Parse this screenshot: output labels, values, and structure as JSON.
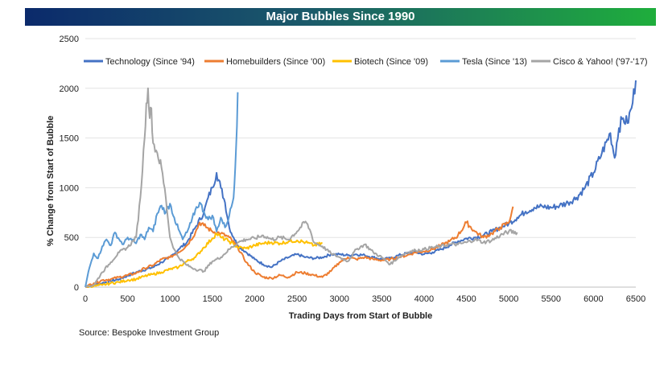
{
  "header": {
    "title": "Major Bubbles Since 1990"
  },
  "footer": {
    "source": "Source: Bespoke Investment Group"
  },
  "chart_data": {
    "type": "line",
    "title": "Major Bubbles Since 1990",
    "xlabel": "Trading Days from Start of Bubble",
    "ylabel": "% Change from Start of Bubble",
    "xlim": [
      0,
      6500
    ],
    "ylim": [
      0,
      2500
    ],
    "x_ticks": [
      0,
      500,
      1000,
      1500,
      2000,
      2500,
      3000,
      3500,
      4000,
      4500,
      5000,
      5500,
      6000,
      6500
    ],
    "y_ticks": [
      0,
      500,
      1000,
      1500,
      2000,
      2500
    ],
    "grid": true,
    "legend_position": "top",
    "series": [
      {
        "name": "Technology (Since '94)",
        "color": "#4472c4",
        "points": [
          [
            0,
            0
          ],
          [
            200,
            40
          ],
          [
            400,
            80
          ],
          [
            600,
            150
          ],
          [
            800,
            200
          ],
          [
            900,
            250
          ],
          [
            1000,
            300
          ],
          [
            1100,
            380
          ],
          [
            1200,
            450
          ],
          [
            1300,
            600
          ],
          [
            1400,
            750
          ],
          [
            1450,
            900
          ],
          [
            1500,
            1000
          ],
          [
            1550,
            1150
          ],
          [
            1600,
            1000
          ],
          [
            1650,
            850
          ],
          [
            1700,
            600
          ],
          [
            1750,
            500
          ],
          [
            1800,
            420
          ],
          [
            1900,
            350
          ],
          [
            2000,
            280
          ],
          [
            2100,
            230
          ],
          [
            2200,
            200
          ],
          [
            2300,
            260
          ],
          [
            2400,
            300
          ],
          [
            2500,
            330
          ],
          [
            2600,
            300
          ],
          [
            2700,
            290
          ],
          [
            2800,
            300
          ],
          [
            2900,
            330
          ],
          [
            3000,
            330
          ],
          [
            3100,
            320
          ],
          [
            3200,
            330
          ],
          [
            3300,
            320
          ],
          [
            3400,
            300
          ],
          [
            3500,
            280
          ],
          [
            3600,
            290
          ],
          [
            3700,
            320
          ],
          [
            3800,
            340
          ],
          [
            3900,
            350
          ],
          [
            4000,
            330
          ],
          [
            4100,
            350
          ],
          [
            4200,
            380
          ],
          [
            4300,
            420
          ],
          [
            4400,
            460
          ],
          [
            4500,
            490
          ],
          [
            4600,
            500
          ],
          [
            4700,
            520
          ],
          [
            4800,
            560
          ],
          [
            4900,
            600
          ],
          [
            5000,
            640
          ],
          [
            5100,
            700
          ],
          [
            5200,
            760
          ],
          [
            5300,
            800
          ],
          [
            5400,
            810
          ],
          [
            5500,
            800
          ],
          [
            5600,
            820
          ],
          [
            5700,
            850
          ],
          [
            5800,
            900
          ],
          [
            5900,
            1000
          ],
          [
            6000,
            1150
          ],
          [
            6100,
            1350
          ],
          [
            6200,
            1550
          ],
          [
            6250,
            1300
          ],
          [
            6300,
            1600
          ],
          [
            6350,
            1700
          ],
          [
            6400,
            1650
          ],
          [
            6450,
            1800
          ],
          [
            6500,
            2080
          ]
        ]
      },
      {
        "name": "Homebuilders (Since '00)",
        "color": "#ed7d31",
        "points": [
          [
            0,
            0
          ],
          [
            100,
            40
          ],
          [
            200,
            70
          ],
          [
            300,
            80
          ],
          [
            400,
            100
          ],
          [
            500,
            120
          ],
          [
            600,
            140
          ],
          [
            700,
            190
          ],
          [
            800,
            220
          ],
          [
            900,
            280
          ],
          [
            1000,
            300
          ],
          [
            1100,
            350
          ],
          [
            1200,
            420
          ],
          [
            1300,
            550
          ],
          [
            1350,
            650
          ],
          [
            1400,
            620
          ],
          [
            1500,
            560
          ],
          [
            1600,
            540
          ],
          [
            1700,
            500
          ],
          [
            1800,
            400
          ],
          [
            1900,
            250
          ],
          [
            2000,
            150
          ],
          [
            2100,
            100
          ],
          [
            2200,
            90
          ],
          [
            2300,
            120
          ],
          [
            2400,
            100
          ],
          [
            2500,
            150
          ],
          [
            2600,
            140
          ],
          [
            2700,
            120
          ],
          [
            2800,
            100
          ],
          [
            2900,
            160
          ],
          [
            3000,
            250
          ],
          [
            3100,
            300
          ],
          [
            3200,
            280
          ],
          [
            3300,
            300
          ],
          [
            3400,
            280
          ],
          [
            3500,
            270
          ],
          [
            3600,
            280
          ],
          [
            3700,
            300
          ],
          [
            3800,
            320
          ],
          [
            3900,
            350
          ],
          [
            4000,
            360
          ],
          [
            4100,
            380
          ],
          [
            4200,
            420
          ],
          [
            4300,
            460
          ],
          [
            4400,
            520
          ],
          [
            4500,
            650
          ],
          [
            4600,
            560
          ],
          [
            4700,
            500
          ],
          [
            4800,
            540
          ],
          [
            4900,
            600
          ],
          [
            5000,
            650
          ],
          [
            5050,
            810
          ]
        ]
      },
      {
        "name": "Biotech (Since '09)",
        "color": "#ffc000",
        "points": [
          [
            0,
            0
          ],
          [
            100,
            10
          ],
          [
            200,
            20
          ],
          [
            300,
            40
          ],
          [
            400,
            50
          ],
          [
            500,
            70
          ],
          [
            600,
            80
          ],
          [
            700,
            110
          ],
          [
            800,
            130
          ],
          [
            900,
            150
          ],
          [
            1000,
            180
          ],
          [
            1100,
            200
          ],
          [
            1200,
            260
          ],
          [
            1300,
            300
          ],
          [
            1400,
            400
          ],
          [
            1500,
            490
          ],
          [
            1550,
            540
          ],
          [
            1600,
            500
          ],
          [
            1700,
            460
          ],
          [
            1800,
            400
          ],
          [
            1900,
            390
          ],
          [
            2000,
            420
          ],
          [
            2100,
            440
          ],
          [
            2200,
            450
          ],
          [
            2300,
            440
          ],
          [
            2400,
            460
          ],
          [
            2500,
            470
          ],
          [
            2600,
            450
          ],
          [
            2700,
            420
          ],
          [
            2800,
            440
          ]
        ]
      },
      {
        "name": "Tesla (Since '13)",
        "color": "#5b9bd5",
        "points": [
          [
            0,
            0
          ],
          [
            50,
            200
          ],
          [
            100,
            340
          ],
          [
            150,
            290
          ],
          [
            200,
            410
          ],
          [
            250,
            480
          ],
          [
            300,
            420
          ],
          [
            350,
            550
          ],
          [
            400,
            480
          ],
          [
            450,
            430
          ],
          [
            500,
            500
          ],
          [
            550,
            470
          ],
          [
            600,
            440
          ],
          [
            650,
            530
          ],
          [
            700,
            480
          ],
          [
            750,
            600
          ],
          [
            800,
            560
          ],
          [
            850,
            740
          ],
          [
            900,
            820
          ],
          [
            950,
            750
          ],
          [
            1000,
            840
          ],
          [
            1050,
            700
          ],
          [
            1100,
            580
          ],
          [
            1150,
            480
          ],
          [
            1200,
            550
          ],
          [
            1250,
            650
          ],
          [
            1300,
            780
          ],
          [
            1350,
            850
          ],
          [
            1400,
            760
          ],
          [
            1450,
            680
          ],
          [
            1500,
            720
          ],
          [
            1550,
            560
          ],
          [
            1600,
            700
          ],
          [
            1650,
            600
          ],
          [
            1700,
            720
          ],
          [
            1750,
            900
          ],
          [
            1780,
            1400
          ],
          [
            1800,
            1960
          ]
        ]
      },
      {
        "name": "Cisco & Yahoo! ('97-'17)",
        "color": "#a5a5a5",
        "points": [
          [
            0,
            0
          ],
          [
            100,
            20
          ],
          [
            200,
            150
          ],
          [
            300,
            250
          ],
          [
            400,
            350
          ],
          [
            500,
            400
          ],
          [
            600,
            500
          ],
          [
            650,
            900
          ],
          [
            700,
            1500
          ],
          [
            720,
            1850
          ],
          [
            740,
            2000
          ],
          [
            760,
            1700
          ],
          [
            780,
            1800
          ],
          [
            800,
            1450
          ],
          [
            850,
            1350
          ],
          [
            900,
            1200
          ],
          [
            950,
            900
          ],
          [
            1000,
            500
          ],
          [
            1050,
            380
          ],
          [
            1100,
            300
          ],
          [
            1200,
            220
          ],
          [
            1300,
            180
          ],
          [
            1400,
            160
          ],
          [
            1500,
            260
          ],
          [
            1600,
            300
          ],
          [
            1700,
            380
          ],
          [
            1800,
            450
          ],
          [
            1900,
            480
          ],
          [
            2000,
            490
          ],
          [
            2100,
            520
          ],
          [
            2200,
            480
          ],
          [
            2300,
            500
          ],
          [
            2400,
            480
          ],
          [
            2500,
            560
          ],
          [
            2600,
            660
          ],
          [
            2650,
            580
          ],
          [
            2700,
            450
          ],
          [
            2800,
            410
          ],
          [
            2900,
            340
          ],
          [
            3000,
            300
          ],
          [
            3100,
            260
          ],
          [
            3200,
            380
          ],
          [
            3300,
            430
          ],
          [
            3400,
            350
          ],
          [
            3500,
            300
          ],
          [
            3600,
            230
          ],
          [
            3700,
            300
          ],
          [
            3800,
            350
          ],
          [
            3900,
            370
          ],
          [
            4000,
            380
          ],
          [
            4100,
            400
          ],
          [
            4200,
            410
          ],
          [
            4300,
            430
          ],
          [
            4400,
            430
          ],
          [
            4500,
            450
          ],
          [
            4600,
            480
          ],
          [
            4700,
            450
          ],
          [
            4800,
            470
          ],
          [
            4900,
            520
          ],
          [
            5000,
            560
          ],
          [
            5100,
            550
          ]
        ]
      }
    ]
  }
}
